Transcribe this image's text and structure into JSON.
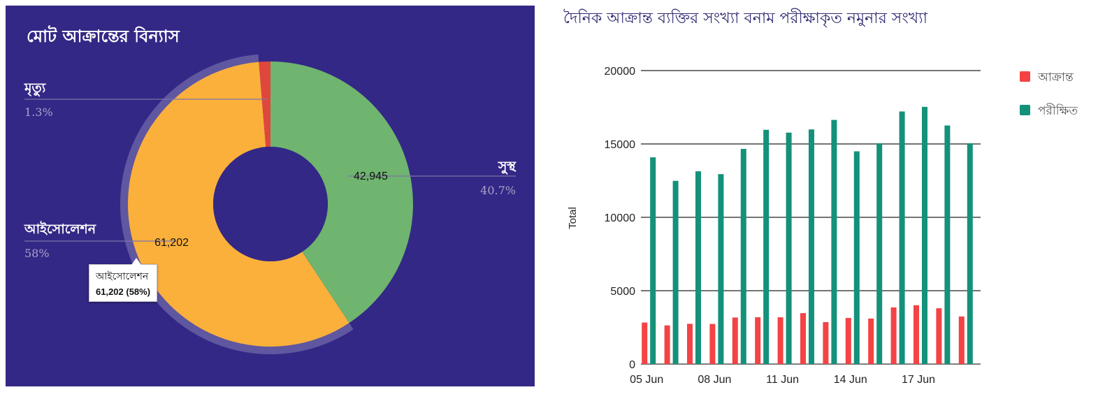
{
  "chart_data": [
    {
      "type": "pie",
      "title": "মোট আক্রান্তের বিন্যাস",
      "donut": true,
      "slices": [
        {
          "name": "সুস্থ",
          "value": 42945,
          "value_label": "42,945",
          "percent": "40.7%",
          "color": "#6fb46f",
          "show_value": true
        },
        {
          "name": "আইসোলেশন",
          "value": 61202,
          "value_label": "61,202",
          "percent": "58%",
          "color": "#fbb03b",
          "show_value": true,
          "highlighted": true
        },
        {
          "name": "মৃত্যু",
          "value": 1372,
          "value_label": "",
          "percent": "1.3%",
          "color": "#e0473c",
          "show_value": false
        }
      ],
      "tooltip": {
        "name": "আইসোলেশন",
        "value": "61,202 (58%)"
      },
      "background": "#332886"
    },
    {
      "type": "bar",
      "title": "দৈনিক আক্রান্ত ব্যক্তির সংখ্যা বনাম পরীক্ষাকৃত নমুনার সংখ্যা",
      "xlabel": "",
      "ylabel": "Total",
      "ylim": [
        0,
        20000
      ],
      "yticks": [
        "0",
        "5000",
        "10000",
        "15000",
        "20000"
      ],
      "categories": [
        "05 Jun",
        "06 Jun",
        "07 Jun",
        "08 Jun",
        "09 Jun",
        "10 Jun",
        "11 Jun",
        "12 Jun",
        "13 Jun",
        "14 Jun",
        "15 Jun",
        "16 Jun",
        "17 Jun",
        "18 Jun",
        "19 Jun"
      ],
      "xtick_labels": [
        "05 Jun",
        "08 Jun",
        "11 Jun",
        "14 Jun",
        "17 Jun"
      ],
      "series": [
        {
          "name": "আক্রান্ত",
          "color": "#f44344",
          "values": [
            2828,
            2635,
            2743,
            2735,
            3171,
            3190,
            3187,
            3471,
            2856,
            3141,
            3099,
            3862,
            4008,
            3803,
            3243
          ]
        },
        {
          "name": "পরীক্ষিত",
          "color": "#14917a",
          "values": [
            14088,
            12486,
            13136,
            12944,
            14664,
            15965,
            15772,
            15990,
            16638,
            14498,
            15045,
            17214,
            17527,
            16259,
            15045
          ]
        }
      ],
      "grid": true,
      "legend": "right-top"
    }
  ]
}
